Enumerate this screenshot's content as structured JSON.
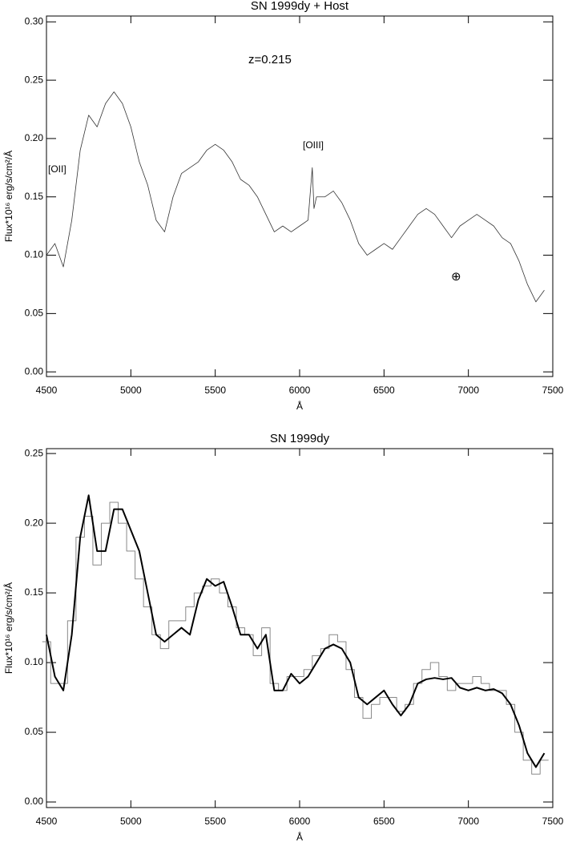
{
  "chart_data": [
    {
      "type": "line",
      "title": "SN 1999dy + Host",
      "xlabel": "Å",
      "ylabel": "Flux*10¹⁶ erg/s/cm²/Å",
      "xlim": [
        4500,
        7500
      ],
      "ylim": [
        -0.004,
        0.305
      ],
      "xticks": [
        4500,
        5000,
        5500,
        6000,
        6500,
        7000,
        7500
      ],
      "yticks": [
        {
          "value": 0,
          "label": "0.00"
        },
        {
          "value": 0.05,
          "label": "0.05"
        },
        {
          "value": 0.1,
          "label": "0.10"
        },
        {
          "value": 0.15,
          "label": "0.15"
        },
        {
          "value": 0.2,
          "label": "0.20"
        },
        {
          "value": 0.25,
          "label": "0.25"
        },
        {
          "value": 0.3,
          "label": "0.30"
        }
      ],
      "annotations": [
        "z=0.215",
        "[OII]",
        "[OIII]",
        "⊕"
      ],
      "x": [
        4500,
        4550,
        4600,
        4650,
        4700,
        4750,
        4800,
        4850,
        4900,
        4950,
        5000,
        5050,
        5100,
        5150,
        5200,
        5250,
        5300,
        5350,
        5400,
        5450,
        5500,
        5550,
        5600,
        5650,
        5700,
        5750,
        5800,
        5850,
        5900,
        5950,
        6000,
        6050,
        6075,
        6085,
        6100,
        6150,
        6200,
        6250,
        6300,
        6350,
        6400,
        6450,
        6500,
        6550,
        6600,
        6650,
        6700,
        6750,
        6800,
        6850,
        6900,
        6950,
        7000,
        7050,
        7100,
        7150,
        7200,
        7250,
        7300,
        7350,
        7400,
        7450
      ],
      "series": [
        {
          "color": "#333333",
          "width": 0.8,
          "drawstyle": "line",
          "values": [
            0.1,
            0.11,
            0.09,
            0.13,
            0.19,
            0.22,
            0.21,
            0.23,
            0.24,
            0.23,
            0.21,
            0.18,
            0.16,
            0.13,
            0.12,
            0.15,
            0.17,
            0.175,
            0.18,
            0.19,
            0.195,
            0.19,
            0.18,
            0.165,
            0.16,
            0.15,
            0.135,
            0.12,
            0.125,
            0.12,
            0.125,
            0.13,
            0.175,
            0.14,
            0.15,
            0.15,
            0.155,
            0.145,
            0.13,
            0.11,
            0.1,
            0.105,
            0.11,
            0.105,
            0.115,
            0.125,
            0.135,
            0.14,
            0.135,
            0.125,
            0.115,
            0.125,
            0.13,
            0.135,
            0.13,
            0.125,
            0.115,
            0.11,
            0.095,
            0.075,
            0.06,
            0.07
          ]
        }
      ]
    },
    {
      "type": "line",
      "title": "SN 1999dy",
      "xlabel": "Å",
      "ylabel": "Flux*10¹⁶ erg/s/cm²/Å",
      "xlim": [
        4500,
        7500
      ],
      "ylim": [
        -0.004,
        0.2535
      ],
      "xticks": [
        4500,
        5000,
        5500,
        6000,
        6500,
        7000,
        7500
      ],
      "yticks": [
        {
          "value": 0,
          "label": "0.00"
        },
        {
          "value": 0.05,
          "label": "0.05"
        },
        {
          "value": 0.1,
          "label": "0.10"
        },
        {
          "value": 0.15,
          "label": "0.15"
        },
        {
          "value": 0.2,
          "label": "0.20"
        },
        {
          "value": 0.25,
          "label": "0.25"
        }
      ],
      "x": [
        4500,
        4550,
        4600,
        4650,
        4700,
        4750,
        4800,
        4850,
        4900,
        4950,
        5000,
        5050,
        5100,
        5150,
        5200,
        5250,
        5300,
        5350,
        5400,
        5450,
        5500,
        5550,
        5600,
        5650,
        5700,
        5750,
        5800,
        5850,
        5900,
        5950,
        6000,
        6050,
        6100,
        6150,
        6200,
        6250,
        6300,
        6350,
        6400,
        6450,
        6500,
        6550,
        6600,
        6650,
        6700,
        6750,
        6800,
        6850,
        6900,
        6950,
        7000,
        7050,
        7100,
        7150,
        7200,
        7250,
        7300,
        7350,
        7400,
        7450
      ],
      "series": [
        {
          "color": "#888888",
          "width": 1,
          "drawstyle": "steps-mid",
          "values": [
            0.115,
            0.085,
            0.085,
            0.13,
            0.19,
            0.205,
            0.17,
            0.2,
            0.215,
            0.2,
            0.18,
            0.16,
            0.14,
            0.12,
            0.11,
            0.13,
            0.13,
            0.14,
            0.15,
            0.155,
            0.16,
            0.15,
            0.14,
            0.125,
            0.12,
            0.105,
            0.125,
            0.085,
            0.08,
            0.09,
            0.09,
            0.095,
            0.105,
            0.11,
            0.12,
            0.115,
            0.095,
            0.075,
            0.06,
            0.07,
            0.075,
            0.075,
            0.065,
            0.07,
            0.085,
            0.095,
            0.1,
            0.09,
            0.08,
            0.085,
            0.085,
            0.09,
            0.085,
            0.08,
            0.08,
            0.07,
            0.05,
            0.03,
            0.02,
            0.03
          ]
        },
        {
          "color": "#000000",
          "width": 2,
          "drawstyle": "line",
          "values": [
            0.12,
            0.09,
            0.08,
            0.12,
            0.19,
            0.22,
            0.18,
            0.18,
            0.21,
            0.21,
            0.195,
            0.18,
            0.15,
            0.12,
            0.115,
            0.12,
            0.125,
            0.12,
            0.145,
            0.16,
            0.155,
            0.158,
            0.14,
            0.12,
            0.12,
            0.11,
            0.12,
            0.08,
            0.08,
            0.092,
            0.085,
            0.09,
            0.1,
            0.11,
            0.113,
            0.11,
            0.1,
            0.075,
            0.07,
            0.075,
            0.08,
            0.07,
            0.062,
            0.07,
            0.085,
            0.088,
            0.089,
            0.088,
            0.089,
            0.082,
            0.08,
            0.082,
            0.08,
            0.081,
            0.078,
            0.07,
            0.055,
            0.035,
            0.025,
            0.035
          ]
        }
      ]
    }
  ]
}
